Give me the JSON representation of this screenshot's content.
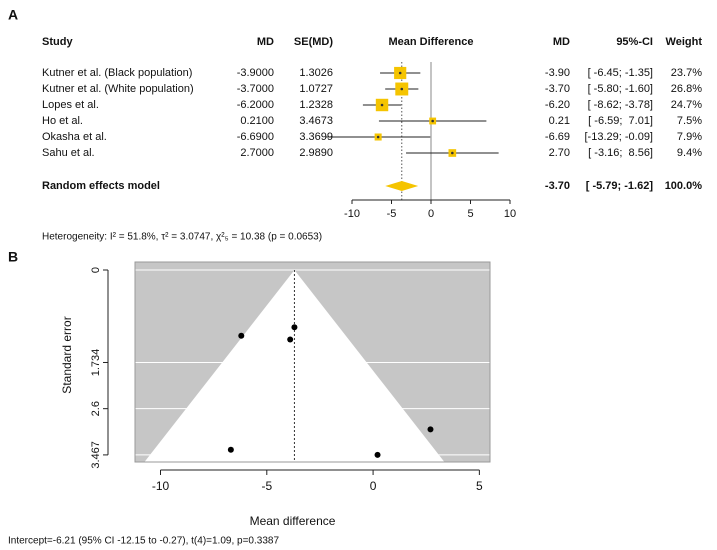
{
  "chart_data": [
    {
      "type": "forest",
      "panel_label": "A",
      "headers": {
        "study": "Study",
        "md": "MD",
        "se": "SE(MD)",
        "plot": "Mean Difference",
        "md_ci": "MD",
        "ci": "95%-CI",
        "weight": "Weight"
      },
      "categories": [
        "Kutner et al. (Black population)",
        "Kutner et al. (White population)",
        "Lopes et al.",
        "Ho et al.",
        "Okasha et al.",
        "Sahu et al."
      ],
      "values": [
        -3.9,
        -3.7,
        -6.2,
        0.21,
        -6.69,
        2.7
      ],
      "value_labels": [
        "-3.9000",
        "-3.7000",
        "-6.2000",
        "0.2100",
        "-6.6900",
        "2.7000"
      ],
      "se": [
        "1.3026",
        "1.0727",
        "1.2328",
        "3.4673",
        "3.3699",
        "2.9890"
      ],
      "md_labels": [
        "-3.90",
        "-3.70",
        "-6.20",
        "0.21",
        "-6.69",
        "2.70"
      ],
      "ci_low": [
        -6.45,
        -5.8,
        -8.62,
        -6.59,
        -13.29,
        -3.16
      ],
      "ci_high": [
        -1.35,
        -1.6,
        -3.78,
        7.01,
        -0.09,
        8.56
      ],
      "ci_labels": [
        "[ -6.45; -1.35]",
        "[ -5.80; -1.60]",
        "[ -8.62; -3.78]",
        "[ -6.59;  7.01]",
        "[-13.29; -0.09]",
        "[ -3.16;  8.56]"
      ],
      "weights": [
        23.7,
        26.8,
        24.7,
        7.5,
        7.9,
        9.4
      ],
      "weight_labels": [
        "23.7%",
        "26.8%",
        "24.7%",
        "7.5%",
        "7.9%",
        "9.4%"
      ],
      "pooled": {
        "label": "Random effects model",
        "value": -3.7,
        "value_label": "-3.70",
        "ci_low": -5.79,
        "ci_high": -1.62,
        "ci_label": "[ -5.79; -1.62]",
        "weight": 100,
        "weight_label": "100.0%"
      },
      "xlim": [
        -10,
        10
      ],
      "xticks": [
        -10,
        -5,
        0,
        5,
        10
      ],
      "color": "#f5c400",
      "heterogeneity": "Heterogeneity: I² = 51.8%, τ² = 3.0747, χ²₅ = 10.38 (p = 0.0653)"
    },
    {
      "type": "funnel",
      "panel_label": "B",
      "x": [
        -3.9,
        -3.7,
        -6.2,
        0.21,
        -6.69,
        2.7
      ],
      "y": [
        1.3026,
        1.0727,
        1.2328,
        3.4673,
        3.3699,
        2.989
      ],
      "pooled": -3.7,
      "xlim": [
        -11.2,
        5.5
      ],
      "ylim": [
        -0.15,
        3.6
      ],
      "xticks": [
        -10,
        -5,
        0,
        5
      ],
      "yticks": [
        0,
        1.734,
        2.6,
        3.467
      ],
      "xlabel": "Mean difference",
      "ylabel": "Standard error",
      "note": "Intercept=-6.21 (95% CI -12.15 to -0.27), t(4)=1.09, p=0.3387",
      "grid": true,
      "color": "#000000"
    }
  ]
}
